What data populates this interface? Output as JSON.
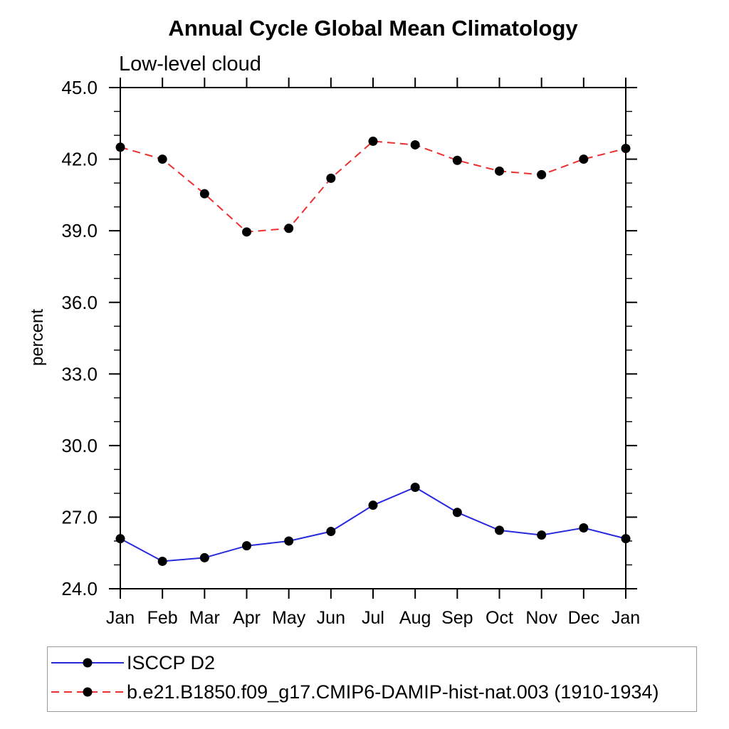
{
  "chart": {
    "title": "Annual Cycle Global Mean Climatology",
    "subtitle": "Low-level cloud",
    "ylabel": "percent"
  },
  "chart_data": {
    "type": "line",
    "title": "Annual Cycle Global Mean Climatology",
    "subtitle": "Low-level cloud",
    "xlabel": "",
    "ylabel": "percent",
    "categories": [
      "Jan",
      "Feb",
      "Mar",
      "Apr",
      "May",
      "Jun",
      "Jul",
      "Aug",
      "Sep",
      "Oct",
      "Nov",
      "Dec",
      "Jan"
    ],
    "ylim": [
      24.0,
      45.0
    ],
    "ytick_major": [
      24.0,
      27.0,
      30.0,
      33.0,
      36.0,
      39.0,
      42.0,
      45.0
    ],
    "ytick_major_labels": [
      "24.0",
      "27.0",
      "30.0",
      "33.0",
      "36.0",
      "39.0",
      "42.0",
      "45.0"
    ],
    "ytick_minor_step": 1.0,
    "grid": false,
    "legend_position": "bottom",
    "frame_color": "#000000",
    "marker_color": "#000000",
    "series": [
      {
        "name": "ISCCP D2",
        "color": "#2a2add",
        "style": "solid",
        "marker": "circle",
        "values": [
          26.1,
          25.15,
          25.3,
          25.8,
          26.0,
          26.4,
          27.5,
          28.25,
          27.2,
          26.45,
          26.25,
          26.55,
          26.1
        ]
      },
      {
        "name": "b.e21.B1850.f09_g17.CMIP6-DAMIP-hist-nat.003 (1910-1934)",
        "color": "#ea3030",
        "style": "dashed",
        "marker": "circle",
        "values": [
          42.5,
          42.0,
          40.55,
          38.95,
          39.1,
          41.2,
          42.75,
          42.6,
          41.95,
          41.5,
          41.35,
          42.0,
          42.45
        ]
      }
    ]
  }
}
